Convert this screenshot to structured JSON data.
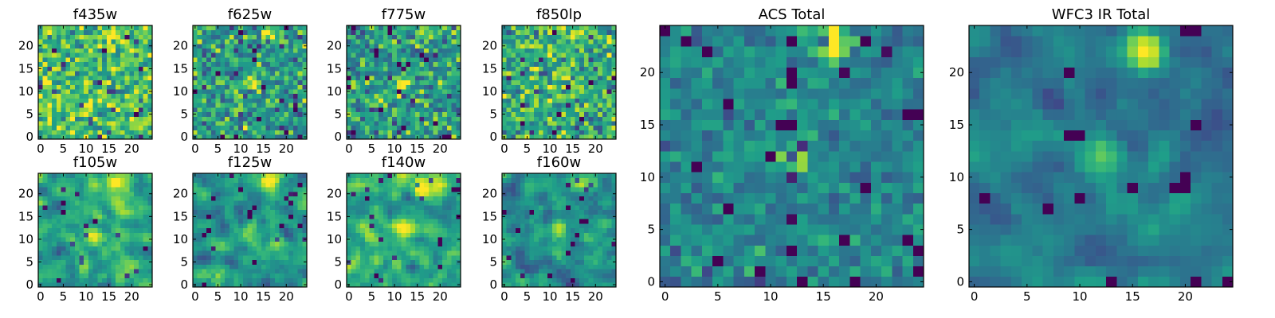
{
  "chart_data": [
    {
      "id": "f435w",
      "type": "heatmap",
      "title": "f435w",
      "shape": [
        25,
        25
      ],
      "xlim": [
        -0.5,
        24.5
      ],
      "ylim": [
        -0.5,
        24.5
      ],
      "xticks": [
        0,
        5,
        10,
        15,
        20
      ],
      "yticks": [
        0,
        5,
        10,
        15,
        20
      ],
      "colormap": "viridis",
      "seed": 11,
      "smooth": 0,
      "noise": 1.0,
      "base": 0.7,
      "sources": [
        {
          "x": 16,
          "y": 23,
          "amp": 0.5,
          "sigma": 1.0
        }
      ]
    },
    {
      "id": "f625w",
      "type": "heatmap",
      "title": "f625w",
      "shape": [
        25,
        25
      ],
      "xlim": [
        -0.5,
        24.5
      ],
      "ylim": [
        -0.5,
        24.5
      ],
      "xticks": [
        0,
        5,
        10,
        15,
        20
      ],
      "yticks": [
        0,
        5,
        10,
        15,
        20
      ],
      "colormap": "viridis",
      "seed": 23,
      "smooth": 0,
      "noise": 1.0,
      "base": 0.55,
      "sources": [
        {
          "x": 16,
          "y": 23,
          "amp": 0.5,
          "sigma": 1.0
        },
        {
          "x": 12,
          "y": 12,
          "amp": 0.35,
          "sigma": 1.0
        }
      ]
    },
    {
      "id": "f775w",
      "type": "heatmap",
      "title": "f775w",
      "shape": [
        25,
        25
      ],
      "xlim": [
        -0.5,
        24.5
      ],
      "ylim": [
        -0.5,
        24.5
      ],
      "xticks": [
        0,
        5,
        10,
        15,
        20
      ],
      "yticks": [
        0,
        5,
        10,
        15,
        20
      ],
      "colormap": "viridis",
      "seed": 37,
      "smooth": 0,
      "noise": 1.0,
      "base": 0.55,
      "sources": [
        {
          "x": 16,
          "y": 23,
          "amp": 0.55,
          "sigma": 1.0
        },
        {
          "x": 12,
          "y": 12,
          "amp": 0.4,
          "sigma": 1.0
        }
      ]
    },
    {
      "id": "f850lp",
      "type": "heatmap",
      "title": "f850lp",
      "shape": [
        25,
        25
      ],
      "xlim": [
        -0.5,
        24.5
      ],
      "ylim": [
        -0.5,
        24.5
      ],
      "xticks": [
        0,
        5,
        10,
        15,
        20
      ],
      "yticks": [
        0,
        5,
        10,
        15,
        20
      ],
      "colormap": "viridis",
      "seed": 41,
      "smooth": 0,
      "noise": 1.0,
      "base": 0.62,
      "sources": [
        {
          "x": 16,
          "y": 23,
          "amp": 0.45,
          "sigma": 1.0
        },
        {
          "x": 12,
          "y": 12,
          "amp": 0.3,
          "sigma": 1.0
        }
      ]
    },
    {
      "id": "f105w",
      "type": "heatmap",
      "title": "f105w",
      "shape": [
        25,
        25
      ],
      "xlim": [
        -0.5,
        24.5
      ],
      "ylim": [
        -0.5,
        24.5
      ],
      "xticks": [
        0,
        5,
        10,
        15,
        20
      ],
      "yticks": [
        0,
        5,
        10,
        15,
        20
      ],
      "colormap": "viridis",
      "seed": 53,
      "smooth": 1,
      "noise": 0.9,
      "base": 0.6,
      "sources": [
        {
          "x": 16,
          "y": 23,
          "amp": 0.45,
          "sigma": 1.4
        },
        {
          "x": 12,
          "y": 11,
          "amp": 0.4,
          "sigma": 1.4
        }
      ]
    },
    {
      "id": "f125w",
      "type": "heatmap",
      "title": "f125w",
      "shape": [
        25,
        25
      ],
      "xlim": [
        -0.5,
        24.5
      ],
      "ylim": [
        -0.5,
        24.5
      ],
      "xticks": [
        0,
        5,
        10,
        15,
        20
      ],
      "yticks": [
        0,
        5,
        10,
        15,
        20
      ],
      "colormap": "viridis",
      "seed": 67,
      "smooth": 1,
      "noise": 0.9,
      "base": 0.55,
      "sources": [
        {
          "x": 16,
          "y": 23,
          "amp": 0.5,
          "sigma": 1.4
        },
        {
          "x": 12,
          "y": 12,
          "amp": 0.45,
          "sigma": 1.2
        }
      ]
    },
    {
      "id": "f140w",
      "type": "heatmap",
      "title": "f140w",
      "shape": [
        25,
        25
      ],
      "xlim": [
        -0.5,
        24.5
      ],
      "ylim": [
        -0.5,
        24.5
      ],
      "xticks": [
        0,
        5,
        10,
        15,
        20
      ],
      "yticks": [
        0,
        5,
        10,
        15,
        20
      ],
      "colormap": "viridis",
      "seed": 71,
      "smooth": 1,
      "noise": 0.9,
      "base": 0.6,
      "sources": [
        {
          "x": 16,
          "y": 22,
          "amp": 0.55,
          "sigma": 1.5
        },
        {
          "x": 12,
          "y": 12,
          "amp": 0.35,
          "sigma": 1.4
        }
      ]
    },
    {
      "id": "f160w",
      "type": "heatmap",
      "title": "f160w",
      "shape": [
        25,
        25
      ],
      "xlim": [
        -0.5,
        24.5
      ],
      "ylim": [
        -0.5,
        24.5
      ],
      "xticks": [
        0,
        5,
        10,
        15,
        20
      ],
      "yticks": [
        0,
        5,
        10,
        15,
        20
      ],
      "colormap": "viridis",
      "seed": 83,
      "smooth": 1,
      "noise": 0.9,
      "base": 0.5,
      "sources": [
        {
          "x": 17,
          "y": 22,
          "amp": 0.6,
          "sigma": 1.4
        },
        {
          "x": 12,
          "y": 12,
          "amp": 0.3,
          "sigma": 1.3
        }
      ]
    },
    {
      "id": "acs_total",
      "type": "heatmap",
      "title": "ACS Total",
      "shape": [
        25,
        25
      ],
      "xlim": [
        -0.5,
        24.5
      ],
      "ylim": [
        -0.5,
        24.5
      ],
      "xticks": [
        0,
        5,
        10,
        15,
        20
      ],
      "yticks": [
        0,
        5,
        10,
        15,
        20
      ],
      "colormap": "viridis",
      "seed": 97,
      "smooth": 0,
      "noise": 0.55,
      "base": 0.45,
      "sources": [
        {
          "x": 16,
          "y": 23,
          "amp": 0.65,
          "sigma": 1.2
        },
        {
          "x": 12,
          "y": 12,
          "amp": 0.5,
          "sigma": 1.0
        }
      ]
    },
    {
      "id": "wfc3_ir_total",
      "type": "heatmap",
      "title": "WFC3 IR Total",
      "shape": [
        25,
        25
      ],
      "xlim": [
        -0.5,
        24.5
      ],
      "ylim": [
        -0.5,
        24.5
      ],
      "xticks": [
        0,
        5,
        10,
        15,
        20
      ],
      "yticks": [
        0,
        5,
        10,
        15,
        20
      ],
      "colormap": "viridis",
      "seed": 103,
      "smooth": 1,
      "noise": 0.6,
      "base": 0.4,
      "sources": [
        {
          "x": 16,
          "y": 22,
          "amp": 0.7,
          "sigma": 1.4
        },
        {
          "x": 12,
          "y": 12,
          "amp": 0.4,
          "sigma": 1.3
        }
      ]
    }
  ],
  "colormap_stops": [
    "#440154",
    "#482878",
    "#3e4a89",
    "#31688e",
    "#26828e",
    "#1f9e89",
    "#35b779",
    "#6ece58",
    "#b5de2b",
    "#fde725"
  ]
}
